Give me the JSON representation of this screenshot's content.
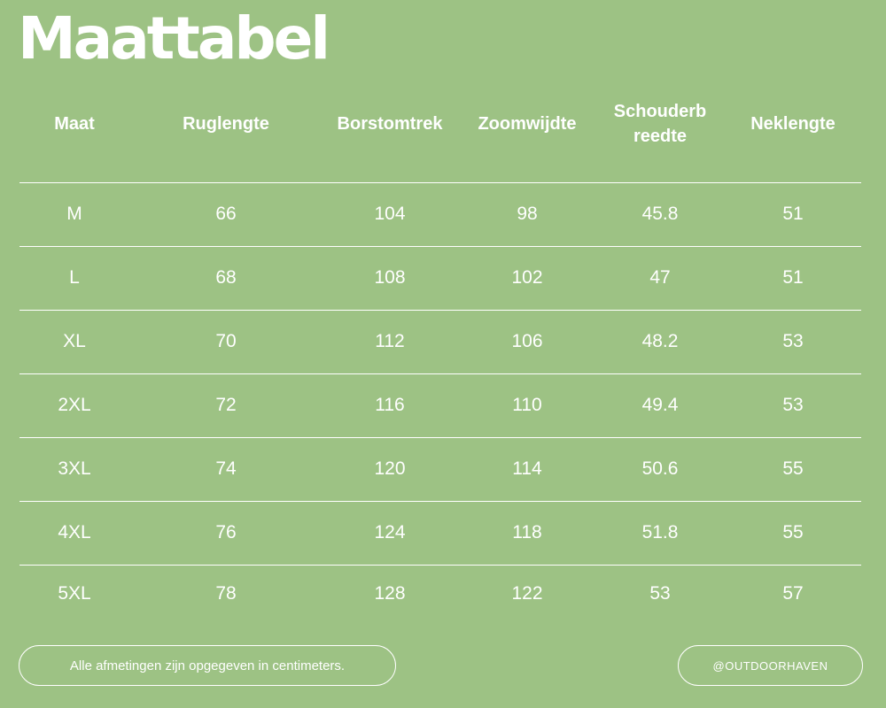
{
  "title": "Maattabel",
  "columns": [
    "Maat",
    "Ruglengte",
    "Borstomtrek",
    "Zoomwijdte",
    "Schouderb reedte",
    "Neklengte"
  ],
  "rows": [
    [
      "M",
      "66",
      "104",
      "98",
      "45.8",
      "51"
    ],
    [
      "L",
      "68",
      "108",
      "102",
      "47",
      "51"
    ],
    [
      "XL",
      "70",
      "112",
      "106",
      "48.2",
      "53"
    ],
    [
      "2XL",
      "72",
      "116",
      "110",
      "49.4",
      "53"
    ],
    [
      "3XL",
      "74",
      "120",
      "114",
      "50.6",
      "55"
    ],
    [
      "4XL",
      "76",
      "124",
      "118",
      "51.8",
      "55"
    ],
    [
      "5XL",
      "78",
      "128",
      "122",
      "53",
      "57"
    ]
  ],
  "footer": {
    "note": "Alle afmetingen zijn opgegeven in centimeters.",
    "handle": "@OUTDOORHAVEN"
  },
  "colors": {
    "background": "#9dc284",
    "text": "#ffffff"
  }
}
